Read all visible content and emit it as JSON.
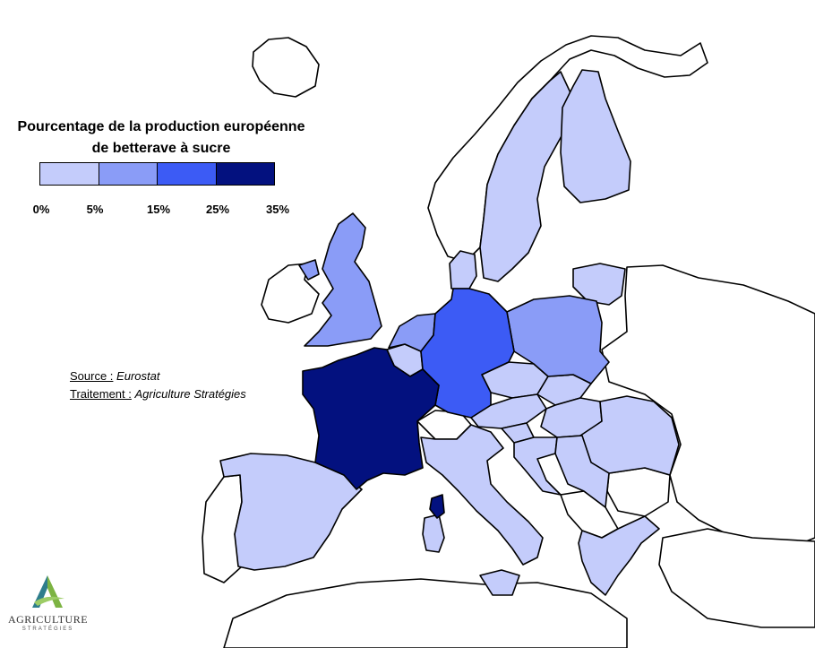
{
  "legend": {
    "title_line1": "Pourcentage de la production européenne",
    "title_line2": "de betterave à sucre",
    "classes": [
      {
        "range": "0% - 5%",
        "color": "#c4ccfb"
      },
      {
        "range": "5% - 15%",
        "color": "#8a9cf7"
      },
      {
        "range": "15% - 25%",
        "color": "#3c5bf5"
      },
      {
        "range": "25% - 35%",
        "color": "#03117f"
      }
    ],
    "ticks": [
      "0%",
      "5%",
      "15%",
      "25%",
      "35%"
    ],
    "tick_values": [
      0,
      5,
      15,
      25,
      35
    ]
  },
  "source": {
    "source_label": "Source :",
    "source_value": "Eurostat",
    "treatment_label": "Traitement :",
    "treatment_value": "Agriculture Stratégies"
  },
  "logo": {
    "name": "AGRICULTURE",
    "subtitle": "STRATÉGIES",
    "colors": [
      "#2e7d8c",
      "#7cb342"
    ]
  },
  "map_colors": {
    "none": "#ffffff",
    "class_0_5": "#c4ccfb",
    "class_5_15": "#8a9cf7",
    "class_15_25": "#3c5bf5",
    "class_25_35": "#03117f"
  },
  "countries": [
    {
      "name": "France",
      "class": "25% - 35%"
    },
    {
      "name": "Germany",
      "class": "15% - 25%"
    },
    {
      "name": "Poland",
      "class": "5% - 15%"
    },
    {
      "name": "United Kingdom",
      "class": "5% - 15%"
    },
    {
      "name": "Netherlands",
      "class": "5% - 15%"
    },
    {
      "name": "Belgium",
      "class": "0% - 5%"
    },
    {
      "name": "Ireland",
      "class": "none"
    },
    {
      "name": "Northern Ireland",
      "class": "5% - 15%"
    },
    {
      "name": "Spain",
      "class": "0% - 5%"
    },
    {
      "name": "Portugal",
      "class": "none"
    },
    {
      "name": "Italy",
      "class": "0% - 5%"
    },
    {
      "name": "Switzerland",
      "class": "none"
    },
    {
      "name": "Austria",
      "class": "0% - 5%"
    },
    {
      "name": "Czechia",
      "class": "0% - 5%"
    },
    {
      "name": "Slovakia",
      "class": "0% - 5%"
    },
    {
      "name": "Hungary",
      "class": "0% - 5%"
    },
    {
      "name": "Romania",
      "class": "0% - 5%"
    },
    {
      "name": "Croatia",
      "class": "0% - 5%"
    },
    {
      "name": "Serbia",
      "class": "0% - 5%"
    },
    {
      "name": "Greece",
      "class": "0% - 5%"
    },
    {
      "name": "Sweden",
      "class": "0% - 5%"
    },
    {
      "name": "Finland",
      "class": "0% - 5%"
    },
    {
      "name": "Denmark",
      "class": "0% - 5%"
    },
    {
      "name": "Lithuania",
      "class": "0% - 5%"
    },
    {
      "name": "Slovenia",
      "class": "0% - 5%"
    },
    {
      "name": "Bulgaria",
      "class": "none"
    },
    {
      "name": "Norway",
      "class": "none"
    }
  ]
}
